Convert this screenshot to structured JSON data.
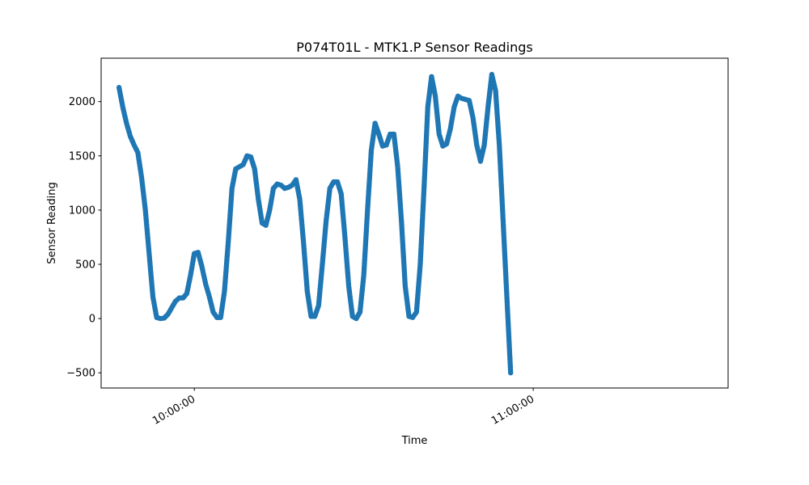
{
  "chart_data": {
    "type": "scatter",
    "title": "P074T01L - MTK1.P Sensor Readings",
    "xlabel": "Time",
    "ylabel": "Sensor Reading",
    "x_unit": "HH:MM:SS",
    "xlim": [
      "09:43:30",
      "11:34:30"
    ],
    "ylim": [
      -640,
      2400
    ],
    "yticks": [
      -500,
      0,
      500,
      1000,
      1500,
      2000
    ],
    "ytick_labels": [
      "−500",
      "0",
      "500",
      "1000",
      "1500",
      "2000"
    ],
    "xticks": [
      "10:00:00",
      "11:00:00"
    ],
    "xtick_labels": [
      "10:00:00",
      "11:00:00"
    ],
    "grid": false,
    "legend": "none",
    "color": "#1f77b4",
    "series": [
      {
        "points": [
          [
            "09:46:40",
            2130
          ],
          [
            "09:47:20",
            1950
          ],
          [
            "09:48:00",
            1800
          ],
          [
            "09:48:40",
            1680
          ],
          [
            "09:49:20",
            1600
          ],
          [
            "09:50:00",
            1530
          ],
          [
            "09:50:40",
            1300
          ],
          [
            "09:51:20",
            1000
          ],
          [
            "09:52:00",
            600
          ],
          [
            "09:52:40",
            200
          ],
          [
            "09:53:20",
            10
          ],
          [
            "09:54:00",
            0
          ],
          [
            "09:54:40",
            5
          ],
          [
            "09:55:20",
            40
          ],
          [
            "09:56:00",
            100
          ],
          [
            "09:56:40",
            160
          ],
          [
            "09:57:20",
            190
          ],
          [
            "09:58:00",
            190
          ],
          [
            "09:58:40",
            230
          ],
          [
            "09:59:20",
            400
          ],
          [
            "10:00:00",
            600
          ],
          [
            "10:00:40",
            610
          ],
          [
            "10:01:20",
            480
          ],
          [
            "10:02:00",
            320
          ],
          [
            "10:02:40",
            200
          ],
          [
            "10:03:20",
            60
          ],
          [
            "10:04:00",
            10
          ],
          [
            "10:04:40",
            10
          ],
          [
            "10:05:20",
            250
          ],
          [
            "10:06:00",
            700
          ],
          [
            "10:06:40",
            1200
          ],
          [
            "10:07:20",
            1380
          ],
          [
            "10:08:00",
            1400
          ],
          [
            "10:08:40",
            1420
          ],
          [
            "10:09:20",
            1500
          ],
          [
            "10:10:00",
            1490
          ],
          [
            "10:10:40",
            1380
          ],
          [
            "10:11:20",
            1100
          ],
          [
            "10:12:00",
            880
          ],
          [
            "10:12:40",
            860
          ],
          [
            "10:13:20",
            1000
          ],
          [
            "10:14:00",
            1200
          ],
          [
            "10:14:40",
            1240
          ],
          [
            "10:15:20",
            1230
          ],
          [
            "10:16:00",
            1200
          ],
          [
            "10:16:40",
            1210
          ],
          [
            "10:17:20",
            1230
          ],
          [
            "10:18:00",
            1280
          ],
          [
            "10:18:40",
            1100
          ],
          [
            "10:19:20",
            700
          ],
          [
            "10:20:00",
            250
          ],
          [
            "10:20:40",
            20
          ],
          [
            "10:21:20",
            20
          ],
          [
            "10:22:00",
            120
          ],
          [
            "10:22:40",
            500
          ],
          [
            "10:23:20",
            900
          ],
          [
            "10:24:00",
            1200
          ],
          [
            "10:24:40",
            1260
          ],
          [
            "10:25:20",
            1260
          ],
          [
            "10:26:00",
            1150
          ],
          [
            "10:26:40",
            750
          ],
          [
            "10:27:20",
            300
          ],
          [
            "10:28:00",
            20
          ],
          [
            "10:28:40",
            0
          ],
          [
            "10:29:20",
            60
          ],
          [
            "10:30:00",
            400
          ],
          [
            "10:30:40",
            1000
          ],
          [
            "10:31:20",
            1550
          ],
          [
            "10:32:00",
            1800
          ],
          [
            "10:32:40",
            1700
          ],
          [
            "10:33:20",
            1590
          ],
          [
            "10:34:00",
            1600
          ],
          [
            "10:34:40",
            1700
          ],
          [
            "10:35:20",
            1700
          ],
          [
            "10:36:00",
            1400
          ],
          [
            "10:36:40",
            900
          ],
          [
            "10:37:20",
            300
          ],
          [
            "10:38:00",
            20
          ],
          [
            "10:38:40",
            10
          ],
          [
            "10:39:20",
            60
          ],
          [
            "10:40:00",
            500
          ],
          [
            "10:40:40",
            1200
          ],
          [
            "10:41:20",
            1950
          ],
          [
            "10:42:00",
            2230
          ],
          [
            "10:42:40",
            2050
          ],
          [
            "10:43:20",
            1700
          ],
          [
            "10:44:00",
            1590
          ],
          [
            "10:44:40",
            1610
          ],
          [
            "10:45:20",
            1750
          ],
          [
            "10:46:00",
            1950
          ],
          [
            "10:46:40",
            2050
          ],
          [
            "10:47:20",
            2030
          ],
          [
            "10:48:00",
            2020
          ],
          [
            "10:48:40",
            2010
          ],
          [
            "10:49:20",
            1850
          ],
          [
            "10:50:00",
            1600
          ],
          [
            "10:50:40",
            1450
          ],
          [
            "10:51:20",
            1600
          ],
          [
            "10:52:00",
            1950
          ],
          [
            "10:52:40",
            2250
          ],
          [
            "10:53:20",
            2100
          ],
          [
            "10:54:00",
            1600
          ],
          [
            "10:54:40",
            900
          ],
          [
            "10:55:20",
            200
          ],
          [
            "10:56:00",
            -500
          ]
        ]
      }
    ]
  }
}
